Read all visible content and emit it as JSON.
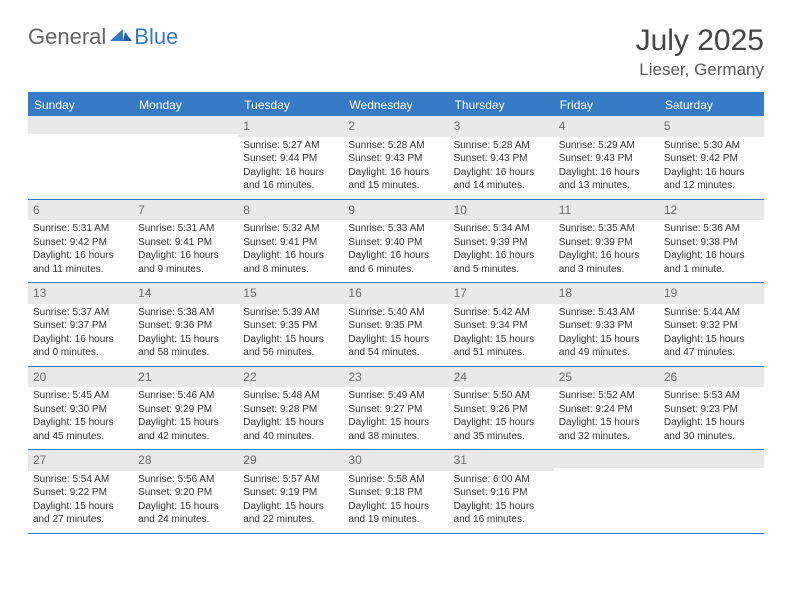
{
  "logo": {
    "text1": "General",
    "text2": "Blue",
    "color_general": "#646464",
    "color_blue": "#3578c4"
  },
  "title": "July 2025",
  "location": "Lieser, Germany",
  "accent_color": "#3679c5",
  "header_bg": "#e9e9e9",
  "dow": [
    "Sunday",
    "Monday",
    "Tuesday",
    "Wednesday",
    "Thursday",
    "Friday",
    "Saturday"
  ],
  "weeks": [
    [
      null,
      null,
      {
        "n": "1",
        "sr": "5:27 AM",
        "ss": "9:44 PM",
        "dl": "16 hours and 16 minutes."
      },
      {
        "n": "2",
        "sr": "5:28 AM",
        "ss": "9:43 PM",
        "dl": "16 hours and 15 minutes."
      },
      {
        "n": "3",
        "sr": "5:28 AM",
        "ss": "9:43 PM",
        "dl": "16 hours and 14 minutes."
      },
      {
        "n": "4",
        "sr": "5:29 AM",
        "ss": "9:43 PM",
        "dl": "16 hours and 13 minutes."
      },
      {
        "n": "5",
        "sr": "5:30 AM",
        "ss": "9:42 PM",
        "dl": "16 hours and 12 minutes."
      }
    ],
    [
      {
        "n": "6",
        "sr": "5:31 AM",
        "ss": "9:42 PM",
        "dl": "16 hours and 11 minutes."
      },
      {
        "n": "7",
        "sr": "5:31 AM",
        "ss": "9:41 PM",
        "dl": "16 hours and 9 minutes."
      },
      {
        "n": "8",
        "sr": "5:32 AM",
        "ss": "9:41 PM",
        "dl": "16 hours and 8 minutes."
      },
      {
        "n": "9",
        "sr": "5:33 AM",
        "ss": "9:40 PM",
        "dl": "16 hours and 6 minutes."
      },
      {
        "n": "10",
        "sr": "5:34 AM",
        "ss": "9:39 PM",
        "dl": "16 hours and 5 minutes."
      },
      {
        "n": "11",
        "sr": "5:35 AM",
        "ss": "9:39 PM",
        "dl": "16 hours and 3 minutes."
      },
      {
        "n": "12",
        "sr": "5:36 AM",
        "ss": "9:38 PM",
        "dl": "16 hours and 1 minute."
      }
    ],
    [
      {
        "n": "13",
        "sr": "5:37 AM",
        "ss": "9:37 PM",
        "dl": "16 hours and 0 minutes."
      },
      {
        "n": "14",
        "sr": "5:38 AM",
        "ss": "9:36 PM",
        "dl": "15 hours and 58 minutes."
      },
      {
        "n": "15",
        "sr": "5:39 AM",
        "ss": "9:35 PM",
        "dl": "15 hours and 56 minutes."
      },
      {
        "n": "16",
        "sr": "5:40 AM",
        "ss": "9:35 PM",
        "dl": "15 hours and 54 minutes."
      },
      {
        "n": "17",
        "sr": "5:42 AM",
        "ss": "9:34 PM",
        "dl": "15 hours and 51 minutes."
      },
      {
        "n": "18",
        "sr": "5:43 AM",
        "ss": "9:33 PM",
        "dl": "15 hours and 49 minutes."
      },
      {
        "n": "19",
        "sr": "5:44 AM",
        "ss": "9:32 PM",
        "dl": "15 hours and 47 minutes."
      }
    ],
    [
      {
        "n": "20",
        "sr": "5:45 AM",
        "ss": "9:30 PM",
        "dl": "15 hours and 45 minutes."
      },
      {
        "n": "21",
        "sr": "5:46 AM",
        "ss": "9:29 PM",
        "dl": "15 hours and 42 minutes."
      },
      {
        "n": "22",
        "sr": "5:48 AM",
        "ss": "9:28 PM",
        "dl": "15 hours and 40 minutes."
      },
      {
        "n": "23",
        "sr": "5:49 AM",
        "ss": "9:27 PM",
        "dl": "15 hours and 38 minutes."
      },
      {
        "n": "24",
        "sr": "5:50 AM",
        "ss": "9:26 PM",
        "dl": "15 hours and 35 minutes."
      },
      {
        "n": "25",
        "sr": "5:52 AM",
        "ss": "9:24 PM",
        "dl": "15 hours and 32 minutes."
      },
      {
        "n": "26",
        "sr": "5:53 AM",
        "ss": "9:23 PM",
        "dl": "15 hours and 30 minutes."
      }
    ],
    [
      {
        "n": "27",
        "sr": "5:54 AM",
        "ss": "9:22 PM",
        "dl": "15 hours and 27 minutes."
      },
      {
        "n": "28",
        "sr": "5:56 AM",
        "ss": "9:20 PM",
        "dl": "15 hours and 24 minutes."
      },
      {
        "n": "29",
        "sr": "5:57 AM",
        "ss": "9:19 PM",
        "dl": "15 hours and 22 minutes."
      },
      {
        "n": "30",
        "sr": "5:58 AM",
        "ss": "9:18 PM",
        "dl": "15 hours and 19 minutes."
      },
      {
        "n": "31",
        "sr": "6:00 AM",
        "ss": "9:16 PM",
        "dl": "15 hours and 16 minutes."
      },
      null,
      null
    ]
  ],
  "labels": {
    "sunrise": "Sunrise:",
    "sunset": "Sunset:",
    "daylight": "Daylight:"
  }
}
